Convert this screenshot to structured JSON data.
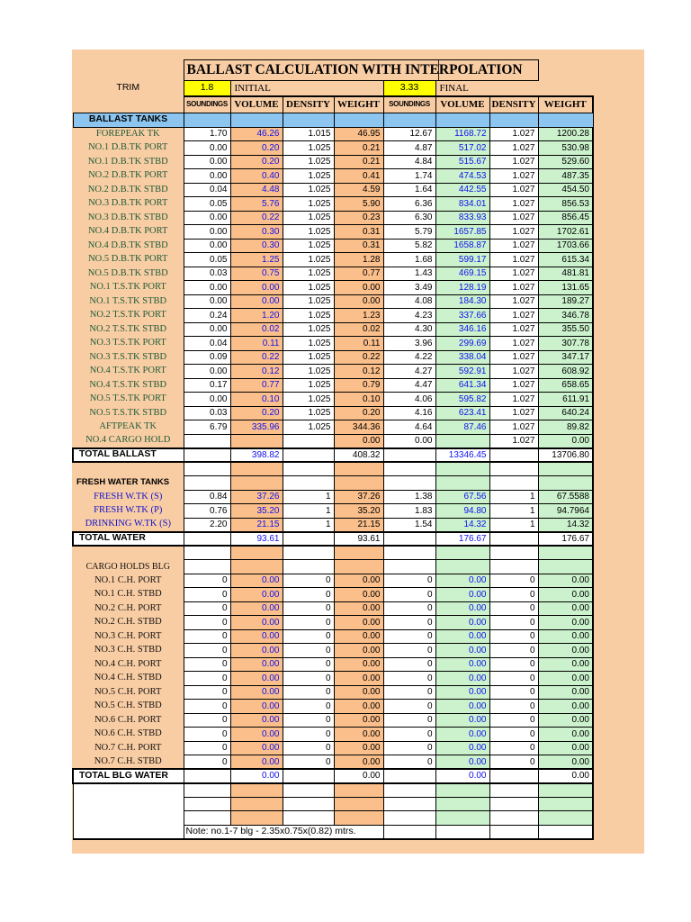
{
  "title": "BALLAST CALCULATION WITH INTERPOLATION",
  "trim": {
    "label": "TRIM",
    "initial_value": "1.8",
    "initial_label": "INITIAL",
    "final_value": "3.33",
    "final_label": "FINAL"
  },
  "columns": [
    "SOUNDINGS",
    "VOLUME",
    "DENSITY",
    "WEIGHT",
    "SOUNDINGS",
    "VOLUME",
    "DENSITY",
    "WEIGHT"
  ],
  "colors": {
    "sheet_background": "#F9CDA4",
    "initial_cell_orange": "#FBBF8B",
    "final_cell_green": "#CBF2CD",
    "section_header_blue": "#8CC5F0",
    "trim_highlight_yellow": "#FFFF00",
    "tank_name_green": "#1E5C38",
    "tank_name_blue": "#1212CC",
    "volume_value_blue": "#1010EE"
  },
  "body_rows": [
    {
      "t": "blue",
      "label": "BALLAST TANKS"
    },
    {
      "t": "tank",
      "nc": "green",
      "label": "FOREPEAK TK",
      "v": [
        "1.70",
        "46.26",
        "1.015",
        "46.95",
        "12.67",
        "1168.72",
        "1.027",
        "1200.28"
      ]
    },
    {
      "t": "tank",
      "nc": "green",
      "label": "NO.1 D.B.TK PORT",
      "v": [
        "0.00",
        "0.20",
        "1.025",
        "0.21",
        "4.87",
        "517.02",
        "1.027",
        "530.98"
      ]
    },
    {
      "t": "tank",
      "nc": "green",
      "label": "NO.1 D.B.TK STBD",
      "v": [
        "0.00",
        "0.20",
        "1.025",
        "0.21",
        "4.84",
        "515.67",
        "1.027",
        "529.60"
      ]
    },
    {
      "t": "tank",
      "nc": "green",
      "label": "NO.2 D.B.TK PORT",
      "v": [
        "0.00",
        "0.40",
        "1.025",
        "0.41",
        "1.74",
        "474.53",
        "1.027",
        "487.35"
      ]
    },
    {
      "t": "tank",
      "nc": "green",
      "label": "NO.2 D.B.TK STBD",
      "v": [
        "0.04",
        "4.48",
        "1.025",
        "4.59",
        "1.64",
        "442.55",
        "1.027",
        "454.50"
      ]
    },
    {
      "t": "tank",
      "nc": "green",
      "label": "NO.3 D.B.TK PORT",
      "v": [
        "0.05",
        "5.76",
        "1.025",
        "5.90",
        "6.36",
        "834.01",
        "1.027",
        "856.53"
      ]
    },
    {
      "t": "tank",
      "nc": "green",
      "label": "NO.3 D.B.TK STBD",
      "v": [
        "0.00",
        "0.22",
        "1.025",
        "0.23",
        "6.30",
        "833.93",
        "1.027",
        "856.45"
      ]
    },
    {
      "t": "tank",
      "nc": "green",
      "label": "NO.4 D.B.TK PORT",
      "v": [
        "0.00",
        "0.30",
        "1.025",
        "0.31",
        "5.79",
        "1657.85",
        "1.027",
        "1702.61"
      ]
    },
    {
      "t": "tank",
      "nc": "green",
      "label": "NO.4 D.B.TK STBD",
      "v": [
        "0.00",
        "0.30",
        "1.025",
        "0.31",
        "5.82",
        "1658.87",
        "1.027",
        "1703.66"
      ]
    },
    {
      "t": "tank",
      "nc": "green",
      "label": "NO.5 D.B.TK PORT",
      "v": [
        "0.05",
        "1.25",
        "1.025",
        "1.28",
        "1.68",
        "599.17",
        "1.027",
        "615.34"
      ]
    },
    {
      "t": "tank",
      "nc": "green",
      "label": "NO.5 D.B.TK STBD",
      "v": [
        "0.03",
        "0.75",
        "1.025",
        "0.77",
        "1.43",
        "469.15",
        "1.027",
        "481.81"
      ]
    },
    {
      "t": "tank",
      "nc": "green",
      "label": "NO.1 T.S.TK PORT",
      "v": [
        "0.00",
        "0.00",
        "1.025",
        "0.00",
        "3.49",
        "128.19",
        "1.027",
        "131.65"
      ]
    },
    {
      "t": "tank",
      "nc": "green",
      "label": "NO.1 T.S.TK STBD",
      "v": [
        "0.00",
        "0.00",
        "1.025",
        "0.00",
        "4.08",
        "184.30",
        "1.027",
        "189.27"
      ]
    },
    {
      "t": "tank",
      "nc": "green",
      "label": "NO.2 T.S.TK PORT",
      "v": [
        "0.24",
        "1.20",
        "1.025",
        "1.23",
        "4.23",
        "337.66",
        "1.027",
        "346.78"
      ]
    },
    {
      "t": "tank",
      "nc": "green",
      "label": "NO.2 T.S.TK STBD",
      "v": [
        "0.00",
        "0.02",
        "1.025",
        "0.02",
        "4.30",
        "346.16",
        "1.027",
        "355.50"
      ]
    },
    {
      "t": "tank",
      "nc": "green",
      "label": "NO.3 T.S.TK PORT",
      "v": [
        "0.04",
        "0.11",
        "1.025",
        "0.11",
        "3.96",
        "299.69",
        "1.027",
        "307.78"
      ]
    },
    {
      "t": "tank",
      "nc": "green",
      "label": "NO.3 T.S.TK STBD",
      "v": [
        "0.09",
        "0.22",
        "1.025",
        "0.22",
        "4.22",
        "338.04",
        "1.027",
        "347.17"
      ]
    },
    {
      "t": "tank",
      "nc": "green",
      "label": "NO.4 T.S.TK PORT",
      "v": [
        "0.00",
        "0.12",
        "1.025",
        "0.12",
        "4.27",
        "592.91",
        "1.027",
        "608.92"
      ]
    },
    {
      "t": "tank",
      "nc": "green",
      "label": "NO.4 T.S.TK STBD",
      "v": [
        "0.17",
        "0.77",
        "1.025",
        "0.79",
        "4.47",
        "641.34",
        "1.027",
        "658.65"
      ]
    },
    {
      "t": "tank",
      "nc": "green",
      "label": "NO.5 T.S.TK PORT",
      "v": [
        "0.00",
        "0.10",
        "1.025",
        "0.10",
        "4.06",
        "595.82",
        "1.027",
        "611.91"
      ]
    },
    {
      "t": "tank",
      "nc": "green",
      "label": "NO.5 T.S.TK STBD",
      "v": [
        "0.03",
        "0.20",
        "1.025",
        "0.20",
        "4.16",
        "623.41",
        "1.027",
        "640.24"
      ]
    },
    {
      "t": "tank",
      "nc": "green",
      "label": "AFTPEAK TK",
      "v": [
        "6.79",
        "335.96",
        "1.025",
        "344.36",
        "4.64",
        "87.46",
        "1.027",
        "89.82"
      ]
    },
    {
      "t": "tank",
      "nc": "green",
      "label": "NO.4 CARGO HOLD",
      "v": [
        "",
        "",
        "",
        "0.00",
        "0.00",
        "",
        "1.027",
        "0.00"
      ]
    },
    {
      "t": "total",
      "label": "TOTAL BALLAST",
      "v": [
        "",
        "398.82",
        "",
        "408.32",
        "",
        "13346.45",
        "",
        "13706.80"
      ]
    },
    {
      "t": "spacer"
    },
    {
      "t": "label",
      "style": "bold",
      "label": "FRESH WATER TANKS"
    },
    {
      "t": "tank",
      "nc": "blue",
      "label": "FRESH W.TK (S)",
      "v": [
        "0.84",
        "37.26",
        "1",
        "37.26",
        "1.38",
        "67.56",
        "1",
        "67.5588"
      ]
    },
    {
      "t": "tank",
      "nc": "blue",
      "label": "FRESH W.TK (P)",
      "v": [
        "0.76",
        "35.20",
        "1",
        "35.20",
        "1.83",
        "94.80",
        "1",
        "94.7964"
      ]
    },
    {
      "t": "tank",
      "nc": "blue",
      "label": "DRINKING W.TK (S)",
      "v": [
        "2.20",
        "21.15",
        "1",
        "21.15",
        "1.54",
        "14.32",
        "1",
        "14.32"
      ]
    },
    {
      "t": "total",
      "label": "TOTAL WATER",
      "v": [
        "",
        "93.61",
        "",
        "93.61",
        "",
        "176.67",
        "",
        "176.67"
      ]
    },
    {
      "t": "spacer"
    },
    {
      "t": "label",
      "style": "serif",
      "label": "CARGO HOLDS BLG"
    },
    {
      "t": "tank",
      "nc": "black",
      "label": "NO.1 C.H. PORT",
      "v": [
        "0",
        "0.00",
        "0",
        "0.00",
        "0",
        "0.00",
        "0",
        "0.00"
      ]
    },
    {
      "t": "tank",
      "nc": "black",
      "label": "NO.1 C.H. STBD",
      "v": [
        "0",
        "0.00",
        "0",
        "0.00",
        "0",
        "0.00",
        "0",
        "0.00"
      ]
    },
    {
      "t": "tank",
      "nc": "black",
      "label": "NO.2 C.H. PORT",
      "v": [
        "0",
        "0.00",
        "0",
        "0.00",
        "0",
        "0.00",
        "0",
        "0.00"
      ]
    },
    {
      "t": "tank",
      "nc": "black",
      "label": "NO.2 C.H. STBD",
      "v": [
        "0",
        "0.00",
        "0",
        "0.00",
        "0",
        "0.00",
        "0",
        "0.00"
      ]
    },
    {
      "t": "tank",
      "nc": "black",
      "label": "NO.3 C.H. PORT",
      "v": [
        "0",
        "0.00",
        "0",
        "0.00",
        "0",
        "0.00",
        "0",
        "0.00"
      ]
    },
    {
      "t": "tank",
      "nc": "black",
      "label": "NO.3 C.H. STBD",
      "v": [
        "0",
        "0.00",
        "0",
        "0.00",
        "0",
        "0.00",
        "0",
        "0.00"
      ]
    },
    {
      "t": "tank",
      "nc": "black",
      "label": "NO.4 C.H. PORT",
      "v": [
        "0",
        "0.00",
        "0",
        "0.00",
        "0",
        "0.00",
        "0",
        "0.00"
      ]
    },
    {
      "t": "tank",
      "nc": "black",
      "label": "NO.4 C.H. STBD",
      "v": [
        "0",
        "0.00",
        "0",
        "0.00",
        "0",
        "0.00",
        "0",
        "0.00"
      ]
    },
    {
      "t": "tank",
      "nc": "black",
      "label": "NO.5 C.H. PORT",
      "v": [
        "0",
        "0.00",
        "0",
        "0.00",
        "0",
        "0.00",
        "0",
        "0.00"
      ]
    },
    {
      "t": "tank",
      "nc": "black",
      "label": "NO.5 C.H. STBD",
      "v": [
        "0",
        "0.00",
        "0",
        "0.00",
        "0",
        "0.00",
        "0",
        "0.00"
      ]
    },
    {
      "t": "tank",
      "nc": "black",
      "label": "NO.6 C.H. PORT",
      "v": [
        "0",
        "0.00",
        "0",
        "0.00",
        "0",
        "0.00",
        "0",
        "0.00"
      ]
    },
    {
      "t": "tank",
      "nc": "black",
      "label": "NO.6 C.H. STBD",
      "v": [
        "0",
        "0.00",
        "0",
        "0.00",
        "0",
        "0.00",
        "0",
        "0.00"
      ]
    },
    {
      "t": "tank",
      "nc": "black",
      "label": "NO.7 C.H. PORT",
      "v": [
        "0",
        "0.00",
        "0",
        "0.00",
        "0",
        "0.00",
        "0",
        "0.00"
      ]
    },
    {
      "t": "tank",
      "nc": "black",
      "label": "NO.7 C.H. STBD",
      "v": [
        "0",
        "0.00",
        "0",
        "0.00",
        "0",
        "0.00",
        "0",
        "0.00"
      ]
    },
    {
      "t": "total",
      "label": "TOTAL BLG WATER",
      "v": [
        "",
        "0.00",
        "",
        "0.00",
        "",
        "0.00",
        "",
        "0.00"
      ]
    },
    {
      "t": "bottom",
      "blank_rows": 3,
      "note": "Note: no.1-7 blg - 2.35x0.75x(0.82) mtrs."
    }
  ]
}
